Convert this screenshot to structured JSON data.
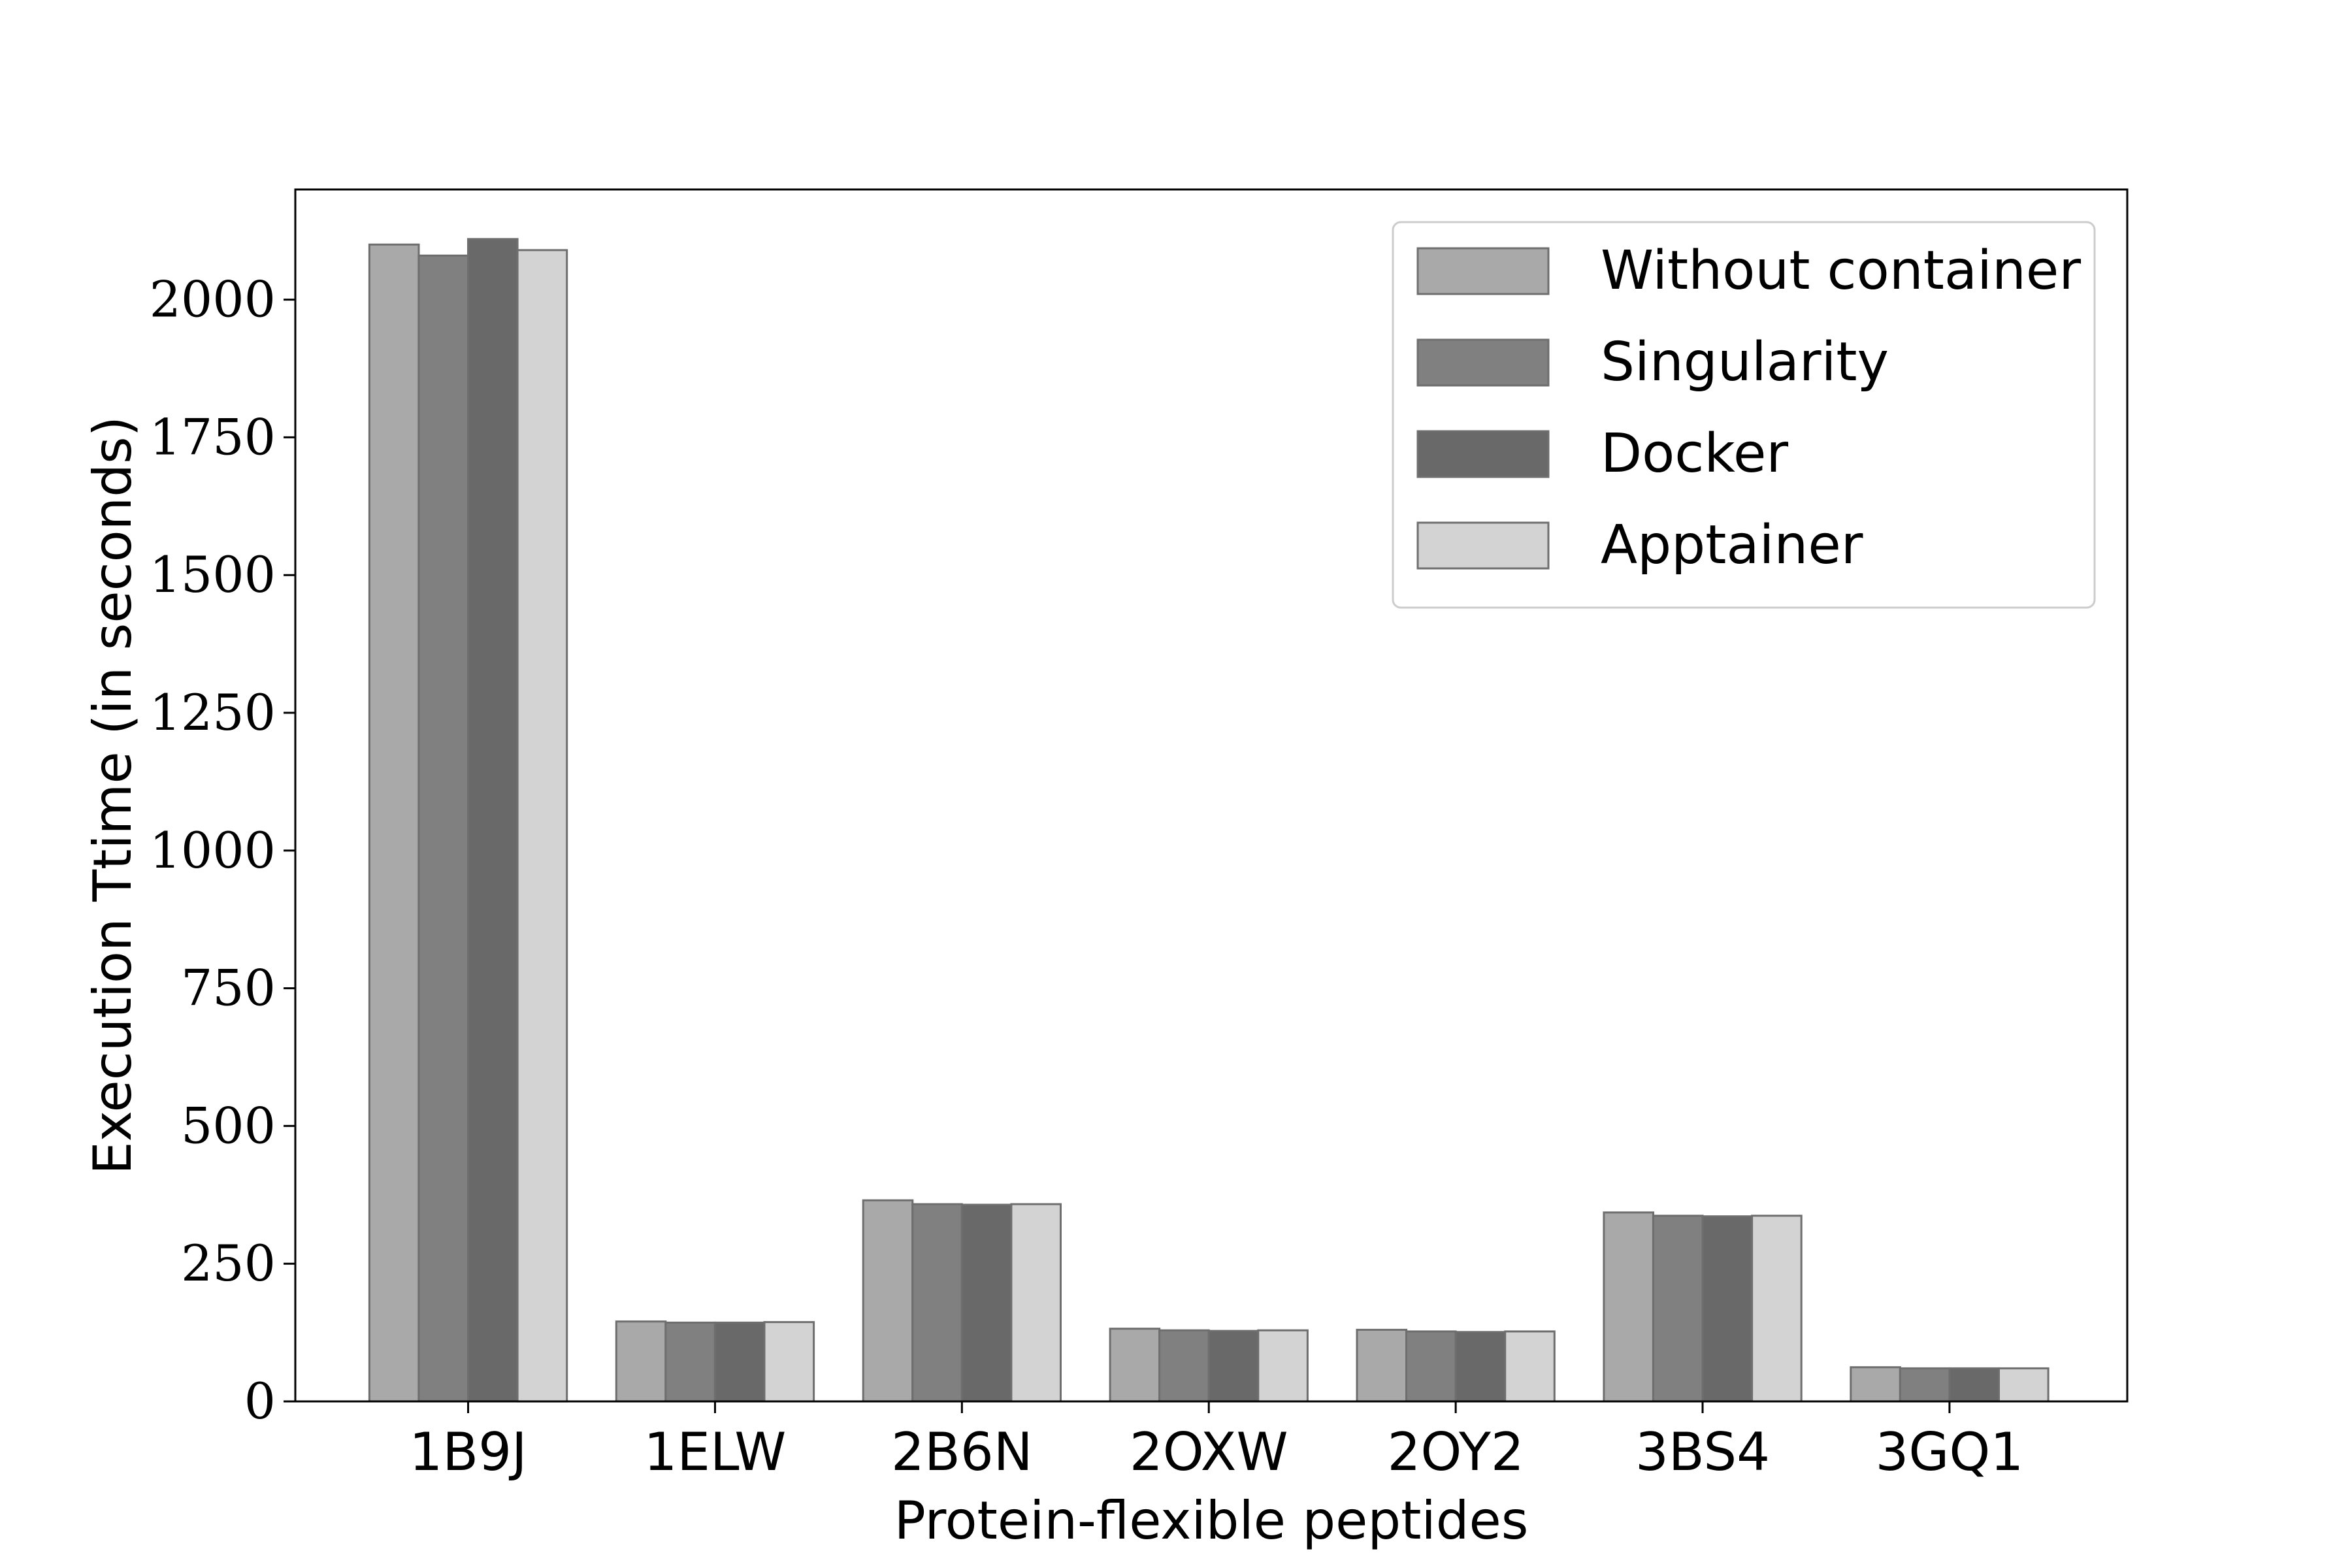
{
  "chart_data": {
    "type": "bar",
    "title": "",
    "xlabel": "Protein-flexible peptides",
    "ylabel": "Execution Ttime (in seconds)",
    "ylim": [
      0,
      2200
    ],
    "yticks": [
      0,
      250,
      500,
      750,
      1000,
      1250,
      1500,
      1750,
      2000
    ],
    "categories": [
      "1B9J",
      "1ELW",
      "2B6N",
      "2OXW",
      "2OY2",
      "3BS4",
      "3GQ1"
    ],
    "series": [
      {
        "name": "Without container",
        "color": "#a9a9a9",
        "values": [
          2100,
          145,
          365,
          132,
          130,
          343,
          62
        ]
      },
      {
        "name": "Singularity",
        "color": "#808080",
        "values": [
          2080,
          143,
          358,
          129,
          127,
          337,
          60
        ]
      },
      {
        "name": "Docker",
        "color": "#696969",
        "values": [
          2110,
          143,
          357,
          128,
          126,
          336,
          60
        ]
      },
      {
        "name": "Apptainer",
        "color": "#d3d3d3",
        "values": [
          2090,
          144,
          358,
          129,
          127,
          337,
          60
        ]
      }
    ],
    "legend_position": "top-right",
    "grid": false
  }
}
